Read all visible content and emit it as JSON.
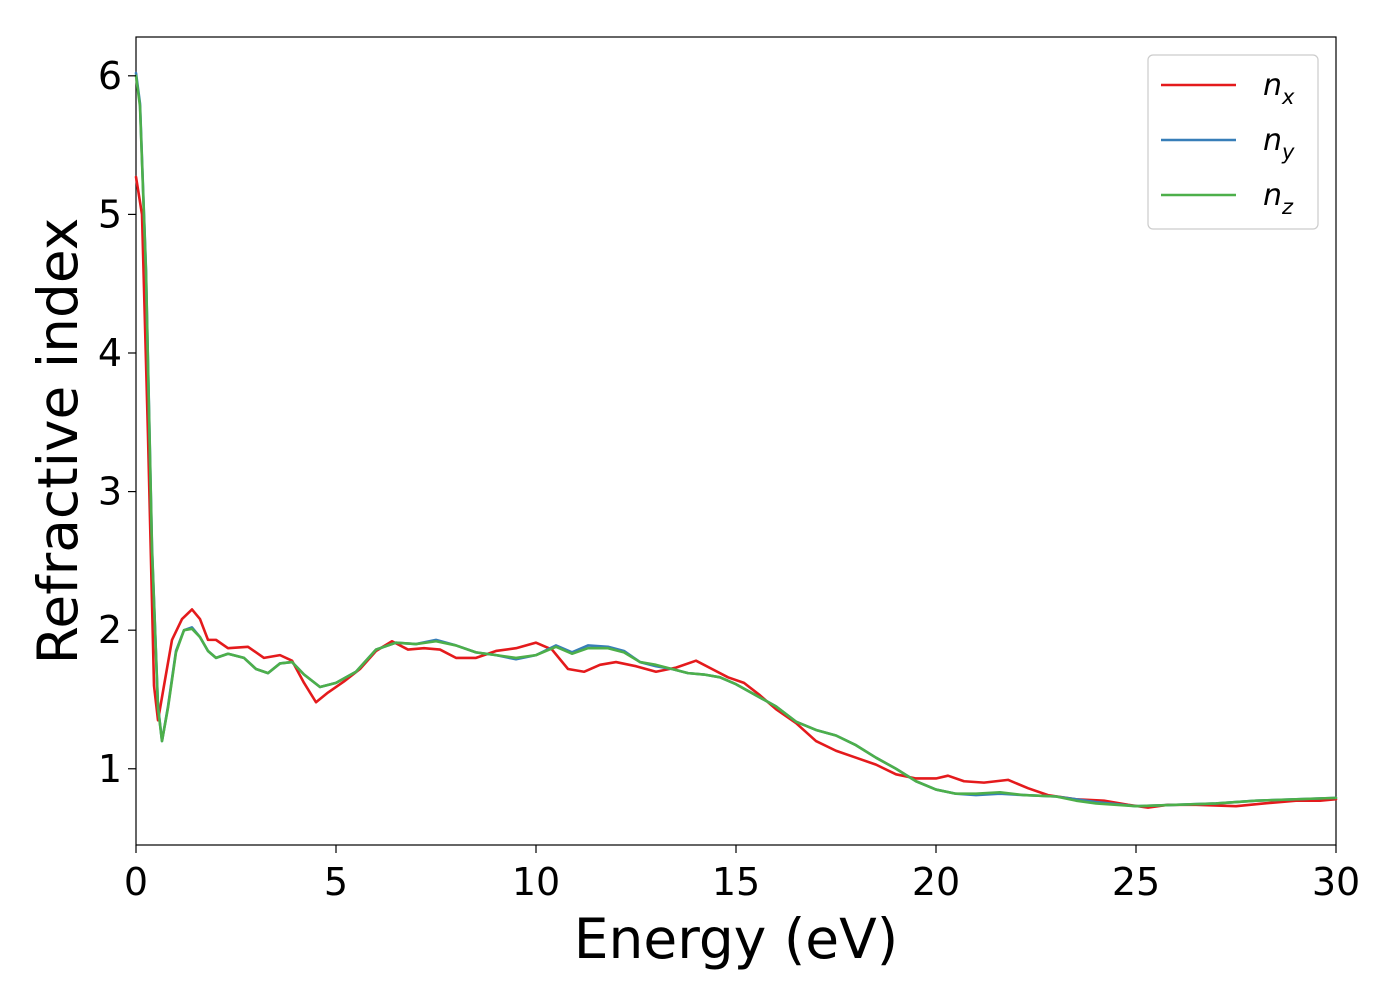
{
  "chart_data": {
    "type": "line",
    "title": "",
    "xlabel": "Energy (eV)",
    "ylabel": "Refractive index",
    "xlim": [
      0,
      30
    ],
    "ylim": [
      0.45,
      6.28
    ],
    "xticks": [
      0,
      5,
      10,
      15,
      20,
      25,
      30
    ],
    "yticks": [
      1,
      2,
      3,
      4,
      5,
      6
    ],
    "grid": false,
    "legend_position": "top-right",
    "series": [
      {
        "name": "n",
        "subscript": "x",
        "color": "#e41a1c",
        "points": [
          [
            0,
            5.27
          ],
          [
            0.15,
            5.0
          ],
          [
            0.3,
            3.4
          ],
          [
            0.45,
            1.6
          ],
          [
            0.55,
            1.35
          ],
          [
            0.7,
            1.6
          ],
          [
            0.9,
            1.93
          ],
          [
            1.15,
            2.08
          ],
          [
            1.4,
            2.15
          ],
          [
            1.6,
            2.08
          ],
          [
            1.8,
            1.93
          ],
          [
            2.0,
            1.93
          ],
          [
            2.3,
            1.87
          ],
          [
            2.8,
            1.88
          ],
          [
            3.2,
            1.8
          ],
          [
            3.6,
            1.82
          ],
          [
            3.9,
            1.78
          ],
          [
            4.2,
            1.62
          ],
          [
            4.5,
            1.48
          ],
          [
            4.8,
            1.55
          ],
          [
            5.2,
            1.63
          ],
          [
            5.6,
            1.72
          ],
          [
            6.0,
            1.85
          ],
          [
            6.4,
            1.92
          ],
          [
            6.8,
            1.86
          ],
          [
            7.2,
            1.87
          ],
          [
            7.6,
            1.86
          ],
          [
            8.0,
            1.8
          ],
          [
            8.5,
            1.8
          ],
          [
            9.0,
            1.85
          ],
          [
            9.5,
            1.87
          ],
          [
            10.0,
            1.91
          ],
          [
            10.4,
            1.86
          ],
          [
            10.8,
            1.72
          ],
          [
            11.2,
            1.7
          ],
          [
            11.6,
            1.75
          ],
          [
            12.0,
            1.77
          ],
          [
            12.5,
            1.74
          ],
          [
            13.0,
            1.7
          ],
          [
            13.5,
            1.73
          ],
          [
            14.0,
            1.78
          ],
          [
            14.4,
            1.72
          ],
          [
            14.8,
            1.66
          ],
          [
            15.2,
            1.62
          ],
          [
            15.6,
            1.53
          ],
          [
            16.0,
            1.43
          ],
          [
            16.5,
            1.33
          ],
          [
            17.0,
            1.2
          ],
          [
            17.5,
            1.13
          ],
          [
            18.0,
            1.08
          ],
          [
            18.5,
            1.03
          ],
          [
            19.0,
            0.96
          ],
          [
            19.5,
            0.93
          ],
          [
            20.0,
            0.93
          ],
          [
            20.3,
            0.95
          ],
          [
            20.7,
            0.91
          ],
          [
            21.2,
            0.9
          ],
          [
            21.8,
            0.92
          ],
          [
            22.3,
            0.86
          ],
          [
            22.8,
            0.81
          ],
          [
            23.5,
            0.78
          ],
          [
            24.2,
            0.77
          ],
          [
            24.8,
            0.74
          ],
          [
            25.3,
            0.72
          ],
          [
            25.8,
            0.74
          ],
          [
            26.5,
            0.74
          ],
          [
            27.5,
            0.73
          ],
          [
            28.2,
            0.75
          ],
          [
            29.0,
            0.77
          ],
          [
            29.6,
            0.77
          ],
          [
            30.0,
            0.78
          ]
        ]
      },
      {
        "name": "n",
        "subscript": "y",
        "color": "#377eb8",
        "points": [
          [
            0,
            6.02
          ],
          [
            0.1,
            5.8
          ],
          [
            0.25,
            4.6
          ],
          [
            0.4,
            2.6
          ],
          [
            0.55,
            1.45
          ],
          [
            0.65,
            1.2
          ],
          [
            0.8,
            1.45
          ],
          [
            1.0,
            1.85
          ],
          [
            1.2,
            2.0
          ],
          [
            1.4,
            2.02
          ],
          [
            1.6,
            1.95
          ],
          [
            1.8,
            1.85
          ],
          [
            2.0,
            1.8
          ],
          [
            2.3,
            1.83
          ],
          [
            2.7,
            1.8
          ],
          [
            3.0,
            1.72
          ],
          [
            3.3,
            1.69
          ],
          [
            3.6,
            1.76
          ],
          [
            3.9,
            1.77
          ],
          [
            4.2,
            1.68
          ],
          [
            4.6,
            1.59
          ],
          [
            5.0,
            1.62
          ],
          [
            5.5,
            1.7
          ],
          [
            6.0,
            1.86
          ],
          [
            6.5,
            1.91
          ],
          [
            7.0,
            1.9
          ],
          [
            7.5,
            1.93
          ],
          [
            8.0,
            1.89
          ],
          [
            8.5,
            1.84
          ],
          [
            9.0,
            1.82
          ],
          [
            9.5,
            1.79
          ],
          [
            10.0,
            1.82
          ],
          [
            10.5,
            1.89
          ],
          [
            10.9,
            1.84
          ],
          [
            11.3,
            1.89
          ],
          [
            11.8,
            1.88
          ],
          [
            12.2,
            1.85
          ],
          [
            12.6,
            1.77
          ],
          [
            13.0,
            1.74
          ],
          [
            13.4,
            1.72
          ],
          [
            13.8,
            1.69
          ],
          [
            14.2,
            1.68
          ],
          [
            14.6,
            1.66
          ],
          [
            15.0,
            1.61
          ],
          [
            15.5,
            1.53
          ],
          [
            16.0,
            1.45
          ],
          [
            16.5,
            1.34
          ],
          [
            17.0,
            1.28
          ],
          [
            17.5,
            1.24
          ],
          [
            18.0,
            1.17
          ],
          [
            18.5,
            1.08
          ],
          [
            19.0,
            1.0
          ],
          [
            19.5,
            0.91
          ],
          [
            20.0,
            0.85
          ],
          [
            20.5,
            0.82
          ],
          [
            21.0,
            0.81
          ],
          [
            21.6,
            0.82
          ],
          [
            22.2,
            0.81
          ],
          [
            23.0,
            0.8
          ],
          [
            23.5,
            0.78
          ],
          [
            24.0,
            0.76
          ],
          [
            25.0,
            0.73
          ],
          [
            26.0,
            0.74
          ],
          [
            27.0,
            0.75
          ],
          [
            28.0,
            0.77
          ],
          [
            29.0,
            0.78
          ],
          [
            30.0,
            0.79
          ]
        ]
      },
      {
        "name": "n",
        "subscript": "z",
        "color": "#4daf4a",
        "points": [
          [
            0,
            6.0
          ],
          [
            0.1,
            5.78
          ],
          [
            0.25,
            4.58
          ],
          [
            0.4,
            2.58
          ],
          [
            0.55,
            1.44
          ],
          [
            0.65,
            1.2
          ],
          [
            0.8,
            1.44
          ],
          [
            1.0,
            1.84
          ],
          [
            1.2,
            2.0
          ],
          [
            1.4,
            2.01
          ],
          [
            1.6,
            1.95
          ],
          [
            1.8,
            1.85
          ],
          [
            2.0,
            1.8
          ],
          [
            2.3,
            1.83
          ],
          [
            2.7,
            1.8
          ],
          [
            3.0,
            1.72
          ],
          [
            3.3,
            1.69
          ],
          [
            3.6,
            1.76
          ],
          [
            3.9,
            1.77
          ],
          [
            4.2,
            1.68
          ],
          [
            4.6,
            1.59
          ],
          [
            5.0,
            1.62
          ],
          [
            5.5,
            1.7
          ],
          [
            6.0,
            1.86
          ],
          [
            6.5,
            1.91
          ],
          [
            7.0,
            1.9
          ],
          [
            7.5,
            1.92
          ],
          [
            8.0,
            1.89
          ],
          [
            8.5,
            1.84
          ],
          [
            9.0,
            1.82
          ],
          [
            9.5,
            1.8
          ],
          [
            10.0,
            1.82
          ],
          [
            10.5,
            1.88
          ],
          [
            10.9,
            1.83
          ],
          [
            11.3,
            1.87
          ],
          [
            11.8,
            1.87
          ],
          [
            12.2,
            1.84
          ],
          [
            12.6,
            1.77
          ],
          [
            13.0,
            1.75
          ],
          [
            13.4,
            1.72
          ],
          [
            13.8,
            1.69
          ],
          [
            14.2,
            1.68
          ],
          [
            14.6,
            1.66
          ],
          [
            15.0,
            1.61
          ],
          [
            15.5,
            1.53
          ],
          [
            16.0,
            1.45
          ],
          [
            16.5,
            1.34
          ],
          [
            17.0,
            1.28
          ],
          [
            17.5,
            1.24
          ],
          [
            18.0,
            1.17
          ],
          [
            18.5,
            1.08
          ],
          [
            19.0,
            1.0
          ],
          [
            19.5,
            0.91
          ],
          [
            20.0,
            0.85
          ],
          [
            20.5,
            0.82
          ],
          [
            21.0,
            0.82
          ],
          [
            21.6,
            0.83
          ],
          [
            22.2,
            0.81
          ],
          [
            23.0,
            0.8
          ],
          [
            23.5,
            0.77
          ],
          [
            24.0,
            0.75
          ],
          [
            25.0,
            0.73
          ],
          [
            26.0,
            0.74
          ],
          [
            27.0,
            0.75
          ],
          [
            28.0,
            0.77
          ],
          [
            29.0,
            0.78
          ],
          [
            30.0,
            0.79
          ]
        ]
      }
    ]
  }
}
